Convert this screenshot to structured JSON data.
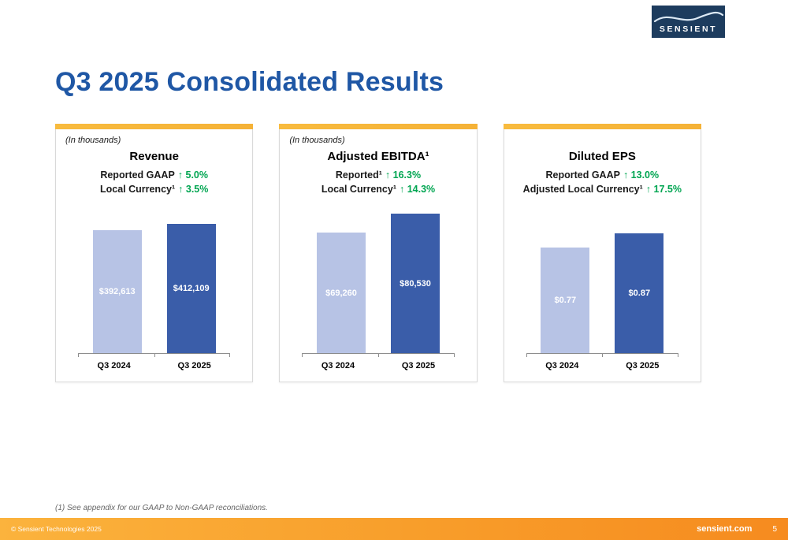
{
  "slide": {
    "title": "Q3 2025 Consolidated Results",
    "footnote": "(1) See appendix for our GAAP to Non-GAAP reconciliations.",
    "logo_text": "SENSIENT",
    "footer": {
      "copyright": "© Sensient Technologies 2025",
      "website": "sensient.com",
      "page_number": "5"
    }
  },
  "colors": {
    "title_blue": "#1f57a5",
    "metric_green": "#00a551",
    "bar_light": "#b7c3e5",
    "bar_dark": "#3a5da9",
    "accent_gold": "#f6b73c",
    "footer_orange_start": "#fbb33d",
    "footer_orange_end": "#f68b1f",
    "logo_navy": "#1d3c5e"
  },
  "chart_data": [
    {
      "type": "bar",
      "title": "Revenue",
      "units_note": "(In thousands)",
      "metrics": [
        {
          "label": "Reported GAAP",
          "change": "↑ 5.0%"
        },
        {
          "label": "Local Currency¹",
          "change": "↑ 3.5%"
        }
      ],
      "categories": [
        "Q3 2024",
        "Q3 2025"
      ],
      "values": [
        392613,
        412109
      ],
      "value_labels": [
        "$392,613",
        "$412,109"
      ],
      "xlabel": "",
      "ylabel": "",
      "ylim": [
        0,
        465000
      ],
      "grid": false,
      "legend": false
    },
    {
      "type": "bar",
      "title": "Adjusted EBITDA¹",
      "units_note": "(In thousands)",
      "metrics": [
        {
          "label": "Reported¹",
          "change": "↑ 16.3%"
        },
        {
          "label": "Local Currency¹",
          "change": "↑ 14.3%"
        }
      ],
      "categories": [
        "Q3 2024",
        "Q3 2025"
      ],
      "values": [
        69260,
        80530
      ],
      "value_labels": [
        "$69,260",
        "$80,530"
      ],
      "xlabel": "",
      "ylabel": "",
      "ylim": [
        0,
        84000
      ],
      "grid": false,
      "legend": false
    },
    {
      "type": "bar",
      "title": "Diluted EPS",
      "units_note": "",
      "metrics": [
        {
          "label": "Reported GAAP",
          "change": "↑ 13.0%"
        },
        {
          "label": "Adjusted Local Currency¹",
          "change": "↑ 17.5%"
        }
      ],
      "categories": [
        "Q3 2024",
        "Q3 2025"
      ],
      "values": [
        0.77,
        0.87
      ],
      "value_labels": [
        "$0.77",
        "$0.87"
      ],
      "xlabel": "",
      "ylabel": "",
      "ylim": [
        0,
        1.06
      ],
      "grid": false,
      "legend": false
    }
  ]
}
